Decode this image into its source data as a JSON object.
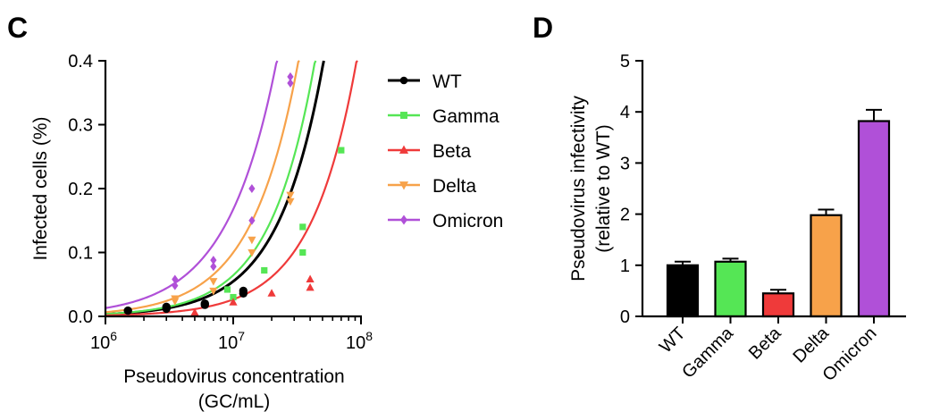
{
  "colors": {
    "WT": "#000000",
    "Gamma": "#55e655",
    "Beta": "#ef3a3a",
    "Delta": "#f7a24a",
    "Omicron": "#b050d8"
  },
  "chart_data": [
    {
      "panel": "C",
      "type": "scatter",
      "xscale": "log",
      "xlabel": "Pseudovirus concentration",
      "xlabel_unit": "(GC/mL)",
      "ylabel": "Infected cells (%)",
      "xlim": [
        1000000,
        100000000
      ],
      "ylim": [
        0,
        0.4
      ],
      "x_ticks": [
        {
          "value": 1000000,
          "base": "10",
          "exp": "6"
        },
        {
          "value": 10000000,
          "base": "10",
          "exp": "7"
        },
        {
          "value": 100000000,
          "base": "10",
          "exp": "8"
        }
      ],
      "y_ticks": [
        "0.0",
        "0.1",
        "0.2",
        "0.3",
        "0.4"
      ],
      "legend_position": "right",
      "series": [
        {
          "name": "WT",
          "marker": "circle",
          "points": [
            [
              1500000,
              0.009
            ],
            [
              3000000,
              0.015
            ],
            [
              3000000,
              0.012
            ],
            [
              6000000,
              0.02
            ],
            [
              6000000,
              0.018
            ],
            [
              12000000,
              0.04
            ],
            [
              12000000,
              0.036
            ]
          ],
          "fit_a": 0.0033
        },
        {
          "name": "Gamma",
          "marker": "square",
          "points": [
            [
              9000000,
              0.042
            ],
            [
              10000000,
              0.03
            ],
            [
              17500000,
              0.072
            ],
            [
              35000000,
              0.14
            ],
            [
              35000000,
              0.1
            ],
            [
              70000000,
              0.26
            ]
          ],
          "fit_a": 0.0037
        },
        {
          "name": "Beta",
          "marker": "triangle-up",
          "points": [
            [
              5000000,
              0.006
            ],
            [
              10000000,
              0.022
            ],
            [
              20000000,
              0.036
            ],
            [
              40000000,
              0.058
            ],
            [
              40000000,
              0.045
            ]
          ],
          "fit_a": 0.0016
        },
        {
          "name": "Delta",
          "marker": "triangle-down",
          "points": [
            [
              3500000,
              0.028
            ],
            [
              3500000,
              0.024
            ],
            [
              7000000,
              0.055
            ],
            [
              7000000,
              0.04
            ],
            [
              14000000,
              0.12
            ],
            [
              14000000,
              0.1
            ],
            [
              28000000,
              0.19
            ],
            [
              28000000,
              0.18
            ]
          ],
          "fit_a": 0.0066
        },
        {
          "name": "Omicron",
          "marker": "diamond",
          "points": [
            [
              3500000,
              0.058
            ],
            [
              3500000,
              0.048
            ],
            [
              7000000,
              0.088
            ],
            [
              7000000,
              0.078
            ],
            [
              14000000,
              0.2
            ],
            [
              14000000,
              0.15
            ],
            [
              28000000,
              0.375
            ],
            [
              28000000,
              0.365
            ]
          ],
          "fit_a": 0.013
        }
      ]
    },
    {
      "panel": "D",
      "type": "bar",
      "ylabel_line1": "Pseudovirus infectivity",
      "ylabel_line2": "(relative to  WT)",
      "ylim": [
        0,
        5
      ],
      "y_ticks": [
        "0",
        "1",
        "2",
        "3",
        "4",
        "5"
      ],
      "categories": [
        "WT",
        "Gamma",
        "Beta",
        "Delta",
        "Omicron"
      ],
      "values": [
        1.0,
        1.07,
        0.45,
        1.98,
        3.82
      ],
      "errors": [
        0.07,
        0.06,
        0.07,
        0.11,
        0.22
      ]
    }
  ]
}
